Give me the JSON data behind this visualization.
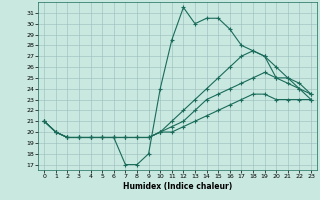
{
  "xlabel": "Humidex (Indice chaleur)",
  "xlim": [
    -0.5,
    23.5
  ],
  "ylim": [
    16.5,
    32
  ],
  "yticks": [
    17,
    18,
    19,
    20,
    21,
    22,
    23,
    24,
    25,
    26,
    27,
    28,
    29,
    30,
    31
  ],
  "xticks": [
    0,
    1,
    2,
    3,
    4,
    5,
    6,
    7,
    8,
    9,
    10,
    11,
    12,
    13,
    14,
    15,
    16,
    17,
    18,
    19,
    20,
    21,
    22,
    23
  ],
  "bg_color": "#c8e8e0",
  "line_color": "#1a6b5a",
  "series": [
    {
      "x": [
        0,
        1,
        2,
        3,
        4,
        5,
        6,
        7,
        8,
        9,
        10,
        11,
        12,
        13,
        14,
        15,
        16,
        17,
        18,
        19,
        20,
        21,
        22,
        23
      ],
      "y": [
        21,
        20,
        19.5,
        19.5,
        19.5,
        19.5,
        19.5,
        17,
        17,
        18,
        24,
        28.5,
        31.5,
        30,
        30.5,
        30.5,
        29.5,
        28,
        27.5,
        27,
        25,
        24.5,
        24,
        23
      ]
    },
    {
      "x": [
        0,
        1,
        2,
        3,
        4,
        5,
        6,
        7,
        8,
        9,
        10,
        11,
        12,
        13,
        14,
        15,
        16,
        17,
        18,
        19,
        20,
        21,
        22,
        23
      ],
      "y": [
        21,
        20,
        19.5,
        19.5,
        19.5,
        19.5,
        19.5,
        19.5,
        19.5,
        19.5,
        20,
        21,
        22,
        23,
        24,
        25,
        26,
        27,
        27.5,
        27,
        26,
        25,
        24,
        23.5
      ]
    },
    {
      "x": [
        0,
        1,
        2,
        3,
        4,
        5,
        6,
        7,
        8,
        9,
        10,
        11,
        12,
        13,
        14,
        15,
        16,
        17,
        18,
        19,
        20,
        21,
        22,
        23
      ],
      "y": [
        21,
        20,
        19.5,
        19.5,
        19.5,
        19.5,
        19.5,
        19.5,
        19.5,
        19.5,
        20,
        20.5,
        21,
        22,
        23,
        23.5,
        24,
        24.5,
        25,
        25.5,
        25,
        25,
        24.5,
        23.5
      ]
    },
    {
      "x": [
        0,
        1,
        2,
        3,
        4,
        5,
        6,
        7,
        8,
        9,
        10,
        11,
        12,
        13,
        14,
        15,
        16,
        17,
        18,
        19,
        20,
        21,
        22,
        23
      ],
      "y": [
        21,
        20,
        19.5,
        19.5,
        19.5,
        19.5,
        19.5,
        19.5,
        19.5,
        19.5,
        20,
        20,
        20.5,
        21,
        21.5,
        22,
        22.5,
        23,
        23.5,
        23.5,
        23,
        23,
        23,
        23
      ]
    }
  ]
}
